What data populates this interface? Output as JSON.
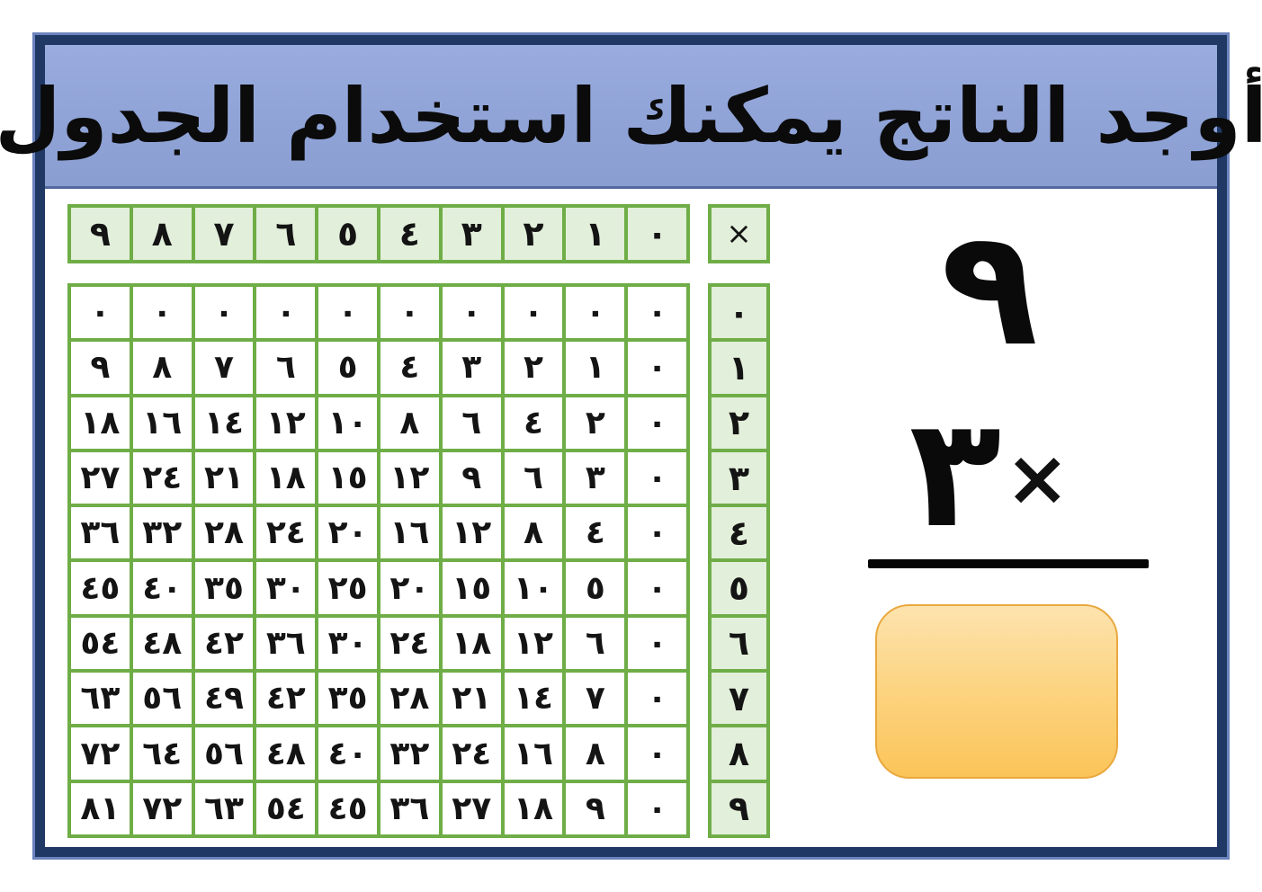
{
  "title": "أوجد الناتج يمكنك استخدام الجدول",
  "multiplication_table": {
    "operator_header": "×",
    "column_headers": [
      "٠",
      "١",
      "٢",
      "٣",
      "٤",
      "٥",
      "٦",
      "٧",
      "٨",
      "٩"
    ],
    "row_headers": [
      "٠",
      "١",
      "٢",
      "٣",
      "٤",
      "٥",
      "٦",
      "٧",
      "٨",
      "٩"
    ],
    "rows": [
      [
        "٠",
        "٠",
        "٠",
        "٠",
        "٠",
        "٠",
        "٠",
        "٠",
        "٠",
        "٠"
      ],
      [
        "٠",
        "١",
        "٢",
        "٣",
        "٤",
        "٥",
        "٦",
        "٧",
        "٨",
        "٩"
      ],
      [
        "٠",
        "٢",
        "٤",
        "٦",
        "٨",
        "١٠",
        "١٢",
        "١٤",
        "١٦",
        "١٨"
      ],
      [
        "٠",
        "٣",
        "٦",
        "٩",
        "١٢",
        "١٥",
        "١٨",
        "٢١",
        "٢٤",
        "٢٧"
      ],
      [
        "٠",
        "٤",
        "٨",
        "١٢",
        "١٦",
        "٢٠",
        "٢٤",
        "٢٨",
        "٣٢",
        "٣٦"
      ],
      [
        "٠",
        "٥",
        "١٠",
        "١٥",
        "٢٠",
        "٢٥",
        "٣٠",
        "٣٥",
        "٤٠",
        "٤٥"
      ],
      [
        "٠",
        "٦",
        "١٢",
        "١٨",
        "٢٤",
        "٣٠",
        "٣٦",
        "٤٢",
        "٤٨",
        "٥٤"
      ],
      [
        "٠",
        "٧",
        "١٤",
        "٢١",
        "٢٨",
        "٣٥",
        "٤٢",
        "٤٩",
        "٥٦",
        "٦٣"
      ],
      [
        "٠",
        "٨",
        "١٦",
        "٢٤",
        "٣٢",
        "٤٠",
        "٤٨",
        "٥٦",
        "٦٤",
        "٧٢"
      ],
      [
        "٠",
        "٩",
        "١٨",
        "٢٧",
        "٣٦",
        "٤٥",
        "٥٤",
        "٦٣",
        "٧٢",
        "٨١"
      ]
    ]
  },
  "problem": {
    "top_operand": "٩",
    "bottom_operand": "٣",
    "operator": "×",
    "answer_value": ""
  },
  "colors": {
    "frame": "#1F3864",
    "frame_highlight": "#6B83BD",
    "title_background": "#8FA3D7",
    "grid_border": "#6FAD47",
    "header_cell_fill": "#E2EFDA",
    "body_cell_fill": "#FFFFFF",
    "answer_box_top": "#FDE3AE",
    "answer_box_bottom": "#FBC458",
    "answer_box_border": "#E9A83E"
  }
}
